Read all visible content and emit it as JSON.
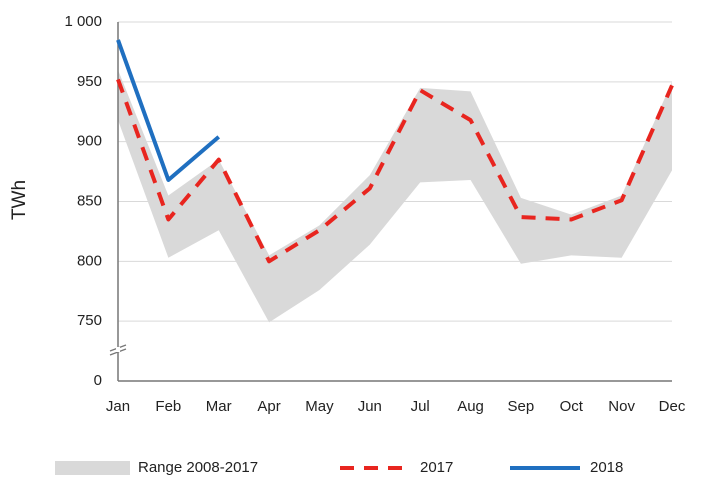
{
  "chart_data": {
    "type": "line",
    "y_label": "TWh",
    "categories": [
      "Jan",
      "Feb",
      "Mar",
      "Apr",
      "May",
      "Jun",
      "Jul",
      "Aug",
      "Sep",
      "Oct",
      "Nov",
      "Dec"
    ],
    "range": {
      "name": "Range 2008-2017",
      "color": "#d9d9d9",
      "low": [
        918,
        803,
        826,
        749,
        776,
        814,
        866,
        868,
        798,
        805,
        803,
        876
      ],
      "high": [
        960,
        855,
        885,
        805,
        830,
        872,
        945,
        942,
        853,
        839,
        855,
        950
      ]
    },
    "series": [
      {
        "name": "2017",
        "color": "#e8251f",
        "dashed": true,
        "values": [
          952,
          835,
          885,
          800,
          826,
          861,
          943,
          918,
          837,
          835,
          851,
          947
        ]
      },
      {
        "name": "2018",
        "color": "#1f6fc0",
        "dashed": false,
        "values": [
          985,
          868,
          904,
          null,
          null,
          null,
          null,
          null,
          null,
          null,
          null,
          null
        ]
      }
    ],
    "ylim": [
      700,
      1000
    ],
    "yticks": [
      750,
      800,
      850,
      900,
      950,
      {
        "value": 1000,
        "label": "1 000"
      }
    ],
    "axis_break_label": 0,
    "grid": true,
    "legend": "bottom"
  }
}
